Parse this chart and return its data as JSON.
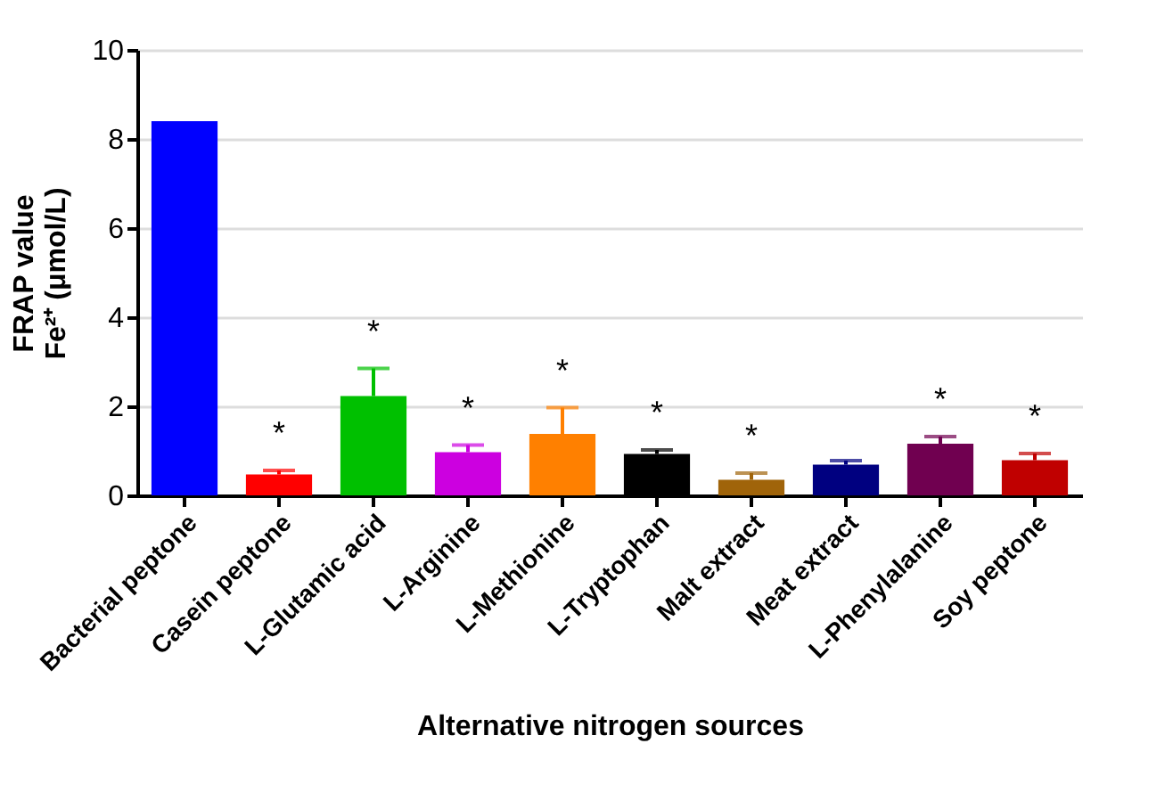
{
  "chart_data": {
    "type": "bar",
    "xlabel": "Alternative nitrogen sources",
    "ylabel": "FRAP value\nFe²⁺ (μmol/L)",
    "categories": [
      "Bacterial peptone",
      "Casein peptone",
      "L-Glutamic acid",
      "L-Arginine",
      "L-Methionine",
      "L-Tryptophan",
      "Malt extract",
      "Meat extract",
      "L-Phenylalanine",
      "Soy peptone"
    ],
    "values": [
      8.4,
      0.47,
      2.23,
      0.97,
      1.38,
      0.93,
      0.35,
      0.69,
      1.16,
      0.79
    ],
    "errors": [
      null,
      [
        0.47,
        0.56
      ],
      [
        2.23,
        2.85
      ],
      [
        0.97,
        1.13
      ],
      [
        1.38,
        1.97
      ],
      [
        0.93,
        1.02
      ],
      [
        0.35,
        0.5
      ],
      [
        0.69,
        0.78
      ],
      [
        1.16,
        1.32
      ],
      [
        0.79,
        0.94
      ]
    ],
    "colors": [
      "#0000ff",
      "#ff0000",
      "#00c000",
      "#cc00e0",
      "#ff8000",
      "#000000",
      "#a0640a",
      "#000080",
      "#700050",
      "#c00000"
    ],
    "ylim": [
      0,
      10
    ],
    "yticks": [
      0,
      2,
      4,
      6,
      8,
      10
    ],
    "grid": "y",
    "annotations": [
      {
        "text": "*",
        "x": "Casein peptone",
        "y": 0.56
      },
      {
        "text": "*",
        "x": "L-Glutamic acid",
        "y": 2.85
      },
      {
        "text": "*",
        "x": "L-Arginine",
        "y": 1.13
      },
      {
        "text": "*",
        "x": "L-Methionine",
        "y": 1.97
      },
      {
        "text": "*",
        "x": "L-Tryptophan",
        "y": 1.02
      },
      {
        "text": "*",
        "x": "Malt extract",
        "y": 0.5
      },
      {
        "text": "*",
        "x": "L-Phenylalanine",
        "y": 1.32
      },
      {
        "text": "*",
        "x": "Soy peptone",
        "y": 0.94
      }
    ]
  }
}
